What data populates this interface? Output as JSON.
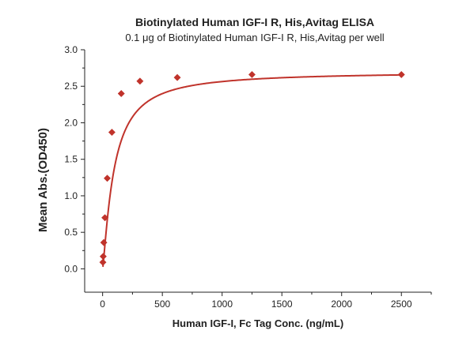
{
  "chart_data": {
    "type": "scatter",
    "title": "Biotinylated Human IGF-I R, His,Avitag ELISA",
    "subtitle": "0.1 μg of Biotinylated Human IGF-I R, His,Avitag per well",
    "xlabel": "Human IGF-I, Fc Tag Conc. (ng/mL)",
    "ylabel": "Mean Abs.(OD450)",
    "xlim": [
      -150,
      2750
    ],
    "ylim": [
      -0.32,
      3.0
    ],
    "x_ticks": [
      0,
      500,
      1000,
      1500,
      2000,
      2500
    ],
    "y_ticks": [
      0.0,
      0.5,
      1.0,
      1.5,
      2.0,
      2.5,
      3.0
    ],
    "x_tick_labels": [
      "0",
      "500",
      "1000",
      "1500",
      "2000",
      "2500"
    ],
    "y_tick_labels": [
      "0.0",
      "0.5",
      "1.0",
      "1.5",
      "2.0",
      "2.5",
      "3.0"
    ],
    "grid": false,
    "series": [
      {
        "x": [
          2.4,
          4.9,
          9.8,
          19.5,
          39,
          78,
          156,
          312.5,
          625,
          1250,
          2500
        ],
        "y": [
          0.09,
          0.17,
          0.36,
          0.7,
          1.24,
          1.87,
          2.4,
          2.57,
          2.62,
          2.66,
          2.66
        ],
        "marker": "diamond",
        "color": "#c0332b",
        "fit_curve": true
      }
    ]
  }
}
